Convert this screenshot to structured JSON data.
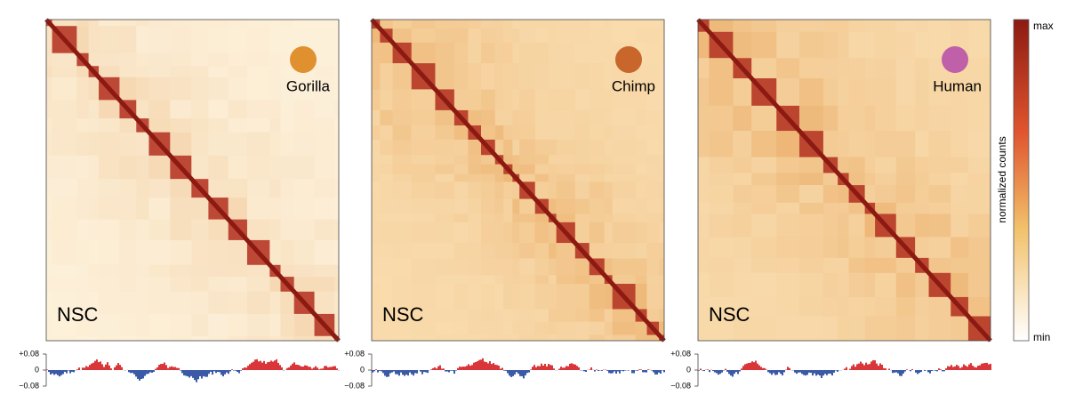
{
  "panels": [
    {
      "species": "Gorilla",
      "cell_type": "NSC"
    },
    {
      "species": "Chimp",
      "cell_type": "NSC"
    },
    {
      "species": "Human",
      "cell_type": "NSC"
    }
  ],
  "track": {
    "ylim": [
      -0.08,
      0.08
    ],
    "yticks": [
      {
        "value": 0.08,
        "label": "+0.08"
      },
      0,
      {
        "value": -0.08,
        "label": "−0.08"
      }
    ]
  },
  "colorbar": {
    "max": "max",
    "min": "min",
    "label": "normalized counts"
  }
}
